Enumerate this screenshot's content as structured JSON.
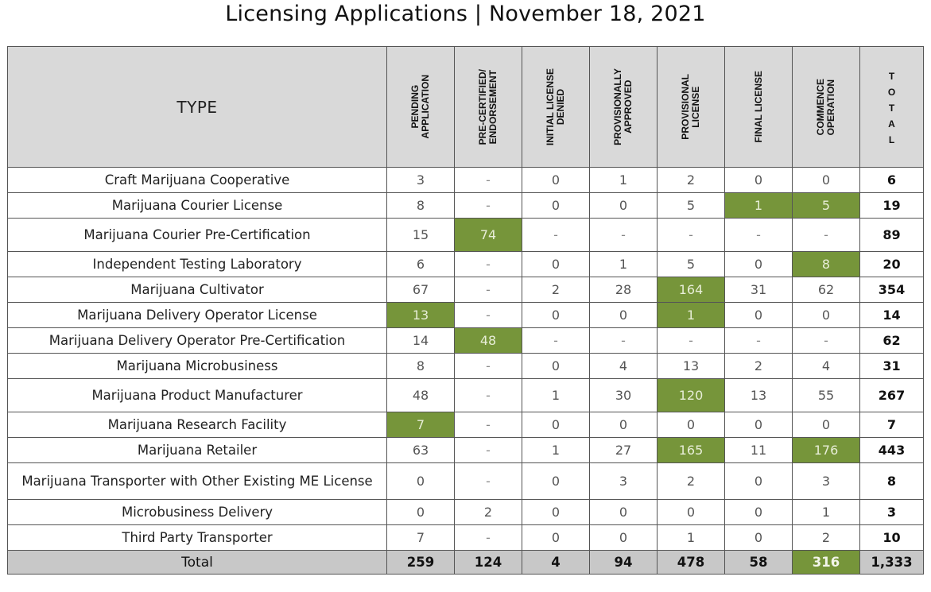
{
  "title": "Licensing Applications | November 18, 2021",
  "header": {
    "type_label": "TYPE",
    "columns": [
      "PENDING\nAPPLICATION",
      "PRE-CERTIFIED/\nENDORSEMENT",
      "INITIAL LICENSE\nDENIED",
      "PROVISIONALLY\nAPPROVED",
      "PROVISIONAL\nLICENSE",
      "FINAL LICENSE",
      "COMMENCE\nOPERATION"
    ],
    "total_label": "T\nO\nT\nA\nL"
  },
  "highlight_color": "#76953a",
  "rows": [
    {
      "type": "Craft Marijuana Cooperative",
      "values": [
        "3",
        "-",
        "0",
        "1",
        "2",
        "0",
        "0"
      ],
      "total": "6",
      "highlight": []
    },
    {
      "type": "Marijuana Courier License",
      "values": [
        "8",
        "-",
        "0",
        "0",
        "5",
        "1",
        "5"
      ],
      "total": "19",
      "highlight": [
        5,
        6
      ]
    },
    {
      "type": "Marijuana Courier Pre-Certification",
      "values": [
        "15",
        "74",
        "-",
        "-",
        "-",
        "-",
        "-"
      ],
      "total": "89",
      "highlight": [
        1
      ]
    },
    {
      "type": "Independent Testing Laboratory",
      "values": [
        "6",
        "-",
        "0",
        "1",
        "5",
        "0",
        "8"
      ],
      "total": "20",
      "highlight": [
        6
      ]
    },
    {
      "type": "Marijuana Cultivator",
      "values": [
        "67",
        "-",
        "2",
        "28",
        "164",
        "31",
        "62"
      ],
      "total": "354",
      "highlight": [
        4
      ]
    },
    {
      "type": "Marijuana Delivery Operator License",
      "values": [
        "13",
        "-",
        "0",
        "0",
        "1",
        "0",
        "0"
      ],
      "total": "14",
      "highlight": [
        0,
        4
      ]
    },
    {
      "type": "Marijuana Delivery Operator Pre-Certification",
      "values": [
        "14",
        "48",
        "-",
        "-",
        "-",
        "-",
        "-"
      ],
      "total": "62",
      "highlight": [
        1
      ]
    },
    {
      "type": "Marijuana Microbusiness",
      "values": [
        "8",
        "-",
        "0",
        "4",
        "13",
        "2",
        "4"
      ],
      "total": "31",
      "highlight": []
    },
    {
      "type": "Marijuana Product Manufacturer",
      "values": [
        "48",
        "-",
        "1",
        "30",
        "120",
        "13",
        "55"
      ],
      "total": "267",
      "highlight": [
        4
      ]
    },
    {
      "type": "Marijuana Research Facility",
      "values": [
        "7",
        "-",
        "0",
        "0",
        "0",
        "0",
        "0"
      ],
      "total": "7",
      "highlight": [
        0
      ]
    },
    {
      "type": "Marijuana Retailer",
      "values": [
        "63",
        "-",
        "1",
        "27",
        "165",
        "11",
        "176"
      ],
      "total": "443",
      "highlight": [
        4,
        6
      ]
    },
    {
      "type": "Marijuana Transporter with Other Existing ME License",
      "values": [
        "0",
        "-",
        "0",
        "3",
        "2",
        "0",
        "3"
      ],
      "total": "8",
      "highlight": []
    },
    {
      "type": "Microbusiness Delivery",
      "values": [
        "0",
        "2",
        "0",
        "0",
        "0",
        "0",
        "1"
      ],
      "total": "3",
      "highlight": []
    },
    {
      "type": "Third Party Transporter",
      "values": [
        "7",
        "-",
        "0",
        "0",
        "1",
        "0",
        "2"
      ],
      "total": "10",
      "highlight": []
    }
  ],
  "totals": {
    "label": "Total",
    "values": [
      "259",
      "124",
      "4",
      "94",
      "478",
      "58",
      "316"
    ],
    "total": "1,333",
    "highlight": [
      6
    ]
  }
}
